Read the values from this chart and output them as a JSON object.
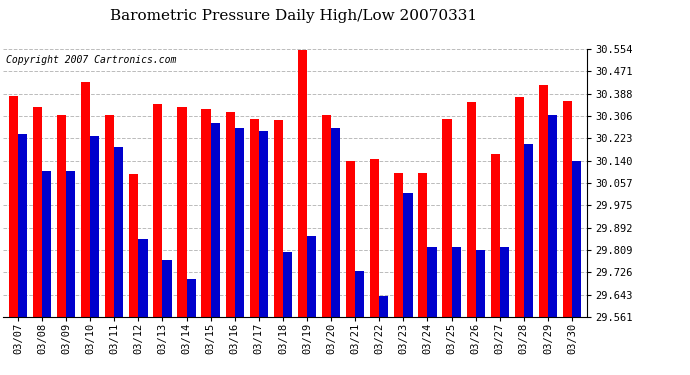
{
  "title": "Barometric Pressure Daily High/Low 20070331",
  "copyright": "Copyright 2007 Cartronics.com",
  "dates": [
    "03/07",
    "03/08",
    "03/09",
    "03/10",
    "03/11",
    "03/12",
    "03/13",
    "03/14",
    "03/15",
    "03/16",
    "03/17",
    "03/18",
    "03/19",
    "03/20",
    "03/21",
    "03/22",
    "03/23",
    "03/24",
    "03/25",
    "03/26",
    "03/27",
    "03/28",
    "03/29",
    "03/30"
  ],
  "highs": [
    30.38,
    30.34,
    30.31,
    30.43,
    30.31,
    30.09,
    30.35,
    30.34,
    30.33,
    30.32,
    30.295,
    30.29,
    30.55,
    30.31,
    30.14,
    30.145,
    30.095,
    30.095,
    30.295,
    30.355,
    30.165,
    30.375,
    30.42,
    30.36
  ],
  "lows": [
    30.24,
    30.1,
    30.1,
    30.23,
    30.19,
    29.85,
    29.77,
    29.7,
    30.28,
    30.26,
    30.25,
    29.8,
    29.86,
    30.26,
    29.73,
    29.64,
    30.02,
    29.82,
    29.82,
    29.81,
    29.82,
    30.2,
    30.31,
    30.14
  ],
  "high_color": "#FF0000",
  "low_color": "#0000CC",
  "bg_color": "#FFFFFF",
  "grid_color": "#BBBBBB",
  "ymin": 29.561,
  "ymax": 30.554,
  "yticks": [
    29.561,
    29.643,
    29.726,
    29.809,
    29.892,
    29.975,
    30.057,
    30.14,
    30.223,
    30.306,
    30.388,
    30.471,
    30.554
  ],
  "title_fontsize": 11,
  "copyright_fontsize": 7,
  "tick_fontsize": 7.5,
  "bar_width": 0.38
}
